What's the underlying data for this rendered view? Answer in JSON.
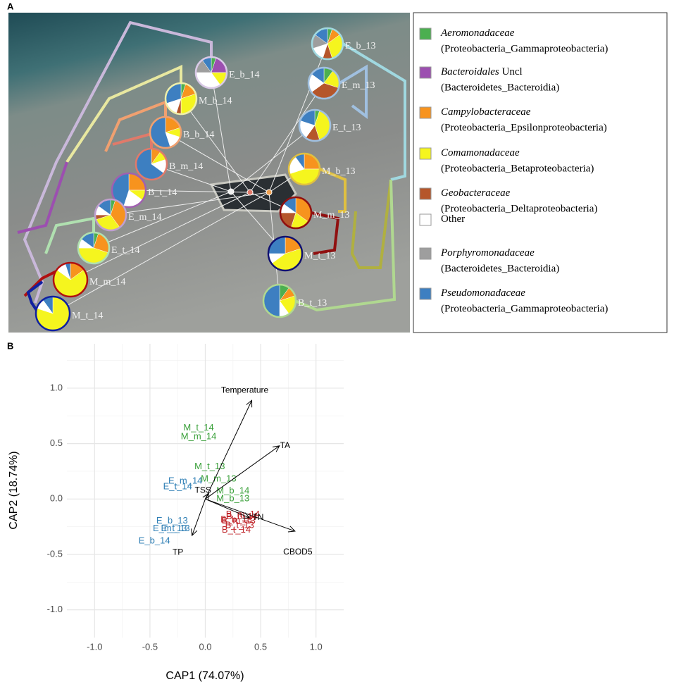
{
  "panel_a_label": "A",
  "panel_b_label": "B",
  "pie_chart": {
    "type": "pie",
    "legend": [
      {
        "name": "Aeromonadaceae",
        "taxon": "(Proteobacteria_Gammaproteobacteria)",
        "color": "#4caf50"
      },
      {
        "name": "Bacteroidales",
        "suffix": "Uncl",
        "taxon": "(Bacteroidetes_Bacteroidia)",
        "color": "#9c4fb0"
      },
      {
        "name": "Campylobacteraceae",
        "taxon": "(Proteobacteria_Epsilonproteobacteria)",
        "color": "#f7931e"
      },
      {
        "name": "Comamonadaceae",
        "taxon": "(Proteobacteria_Betaproteobacteria)",
        "color": "#f5f51e"
      },
      {
        "name": "Geobacteraceae",
        "taxon": "(Proteobacteria_Deltaproteobacteria)",
        "color": "#b5562b"
      },
      {
        "plain": "Other",
        "color": "#ffffff"
      },
      {
        "name": "Porphyromonadaceae",
        "taxon": "(Bacteroidetes_Bacteroidia)",
        "color": "#9e9e9e"
      },
      {
        "name": "Pseudomonadaceae",
        "taxon": "(Proteobacteria_Gammaproteobacteria)",
        "color": "#3d7fc1"
      }
    ],
    "pies": [
      {
        "label": "E_b_14",
        "ring": "#d9c9e6",
        "values": [
          5,
          20,
          0,
          15,
          0,
          35,
          15,
          10
        ]
      },
      {
        "label": "M_b_14",
        "ring": "#eeeeaa",
        "values": [
          5,
          0,
          15,
          30,
          5,
          15,
          0,
          30
        ]
      },
      {
        "label": "B_b_14",
        "ring": "#f0a070",
        "values": [
          0,
          0,
          20,
          10,
          0,
          15,
          0,
          55
        ]
      },
      {
        "label": "B_m_14",
        "ring": "#e07a6a",
        "values": [
          0,
          0,
          10,
          10,
          0,
          15,
          0,
          65
        ]
      },
      {
        "label": "B_t_14",
        "ring": "#a060b0",
        "values": [
          0,
          0,
          25,
          10,
          0,
          20,
          0,
          45
        ]
      },
      {
        "label": "E_m_14",
        "ring": "#c0a0d0",
        "values": [
          5,
          0,
          35,
          30,
          5,
          10,
          0,
          15
        ]
      },
      {
        "label": "E_t_14",
        "ring": "#b0e0b0",
        "values": [
          5,
          0,
          25,
          45,
          0,
          10,
          0,
          15
        ]
      },
      {
        "label": "M_m_14",
        "ring": "#b01010",
        "values": [
          0,
          0,
          15,
          70,
          0,
          10,
          0,
          5
        ]
      },
      {
        "label": "M_t_14",
        "ring": "#1020a0",
        "values": [
          0,
          0,
          0,
          80,
          0,
          10,
          0,
          10
        ]
      },
      {
        "label": "E_b_13",
        "ring": "#a0d8e0",
        "values": [
          5,
          0,
          10,
          30,
          10,
          15,
          15,
          15
        ]
      },
      {
        "label": "E_m_13",
        "ring": "#a0c0e0",
        "values": [
          10,
          0,
          0,
          20,
          35,
          20,
          0,
          15
        ]
      },
      {
        "label": "E_t_13",
        "ring": "#a0c0e0",
        "values": [
          5,
          0,
          0,
          40,
          15,
          20,
          0,
          20
        ]
      },
      {
        "label": "M_b_13",
        "ring": "#e0c040",
        "values": [
          0,
          0,
          25,
          45,
          0,
          20,
          0,
          10
        ]
      },
      {
        "label": "M_m_13",
        "ring": "#901010",
        "values": [
          0,
          0,
          35,
          20,
          20,
          10,
          0,
          15
        ]
      },
      {
        "label": "M_t_13",
        "ring": "#101070",
        "values": [
          0,
          0,
          20,
          45,
          0,
          10,
          0,
          25
        ]
      },
      {
        "label": "B_t_13",
        "ring": "#b0d890",
        "values": [
          10,
          0,
          10,
          20,
          0,
          10,
          0,
          50
        ]
      }
    ]
  },
  "chart_data": {
    "type": "scatter",
    "xlabel": "CAP1 (74.07%)",
    "ylabel": "CAP2 (18.74%)",
    "xlim": [
      -1.25,
      1.25
    ],
    "ylim": [
      -1.25,
      1.4
    ],
    "xticks": [
      {
        "value": -1,
        "label": "-1.0"
      },
      -0.5,
      {
        "value": 0,
        "label": "0.0"
      },
      0.5,
      {
        "value": 1,
        "label": "1.0"
      }
    ],
    "yticks": [
      {
        "value": -1,
        "label": "-1.0"
      },
      -0.5,
      {
        "value": 0,
        "label": "0.0"
      },
      0.5,
      {
        "value": 1,
        "label": "1.0"
      }
    ],
    "grid": true,
    "minor_grid": true,
    "series": [
      {
        "color": "#3aa03a",
        "labels": [
          "M_t_14",
          "M_m_14",
          "M_t_13",
          "M_m_13",
          "M_b_14",
          "M_b_13"
        ],
        "x": [
          -0.06,
          -0.06,
          0.04,
          0.12,
          0.25,
          0.25
        ],
        "y": [
          0.64,
          0.56,
          0.29,
          0.18,
          0.07,
          0.0
        ]
      },
      {
        "color": "#2f7fb5",
        "labels": [
          "E_m_14",
          "E_t_14",
          "E_b_13",
          "E_m_13",
          "E_t_13",
          "E_b_14"
        ],
        "x": [
          -0.18,
          -0.25,
          -0.3,
          -0.32,
          -0.27,
          -0.46
        ],
        "y": [
          0.16,
          0.11,
          -0.2,
          -0.27,
          -0.27,
          -0.38
        ]
      },
      {
        "color": "#c0262b",
        "labels": [
          "B_m_14",
          "B_b_14",
          "B_b_13",
          "B_m_13",
          "B_t_13",
          "B_t_14"
        ],
        "x": [
          0.34,
          0.33,
          0.28,
          0.3,
          0.31,
          0.28
        ],
        "y": [
          -0.14,
          -0.16,
          -0.19,
          -0.2,
          -0.24,
          -0.28
        ]
      }
    ],
    "vectors": [
      {
        "label": "Temperature",
        "x": 0.42,
        "y": 0.89
      },
      {
        "label": "TA",
        "x": 0.67,
        "y": 0.48
      },
      {
        "label": "TSS",
        "x": 0.03,
        "y": 0.05
      },
      {
        "label": "TN",
        "x": 0.4,
        "y": -0.17
      },
      {
        "label": "CBOD5",
        "x": 0.81,
        "y": -0.29
      },
      {
        "label": "TP",
        "x": -0.12,
        "y": -0.33
      }
    ]
  }
}
